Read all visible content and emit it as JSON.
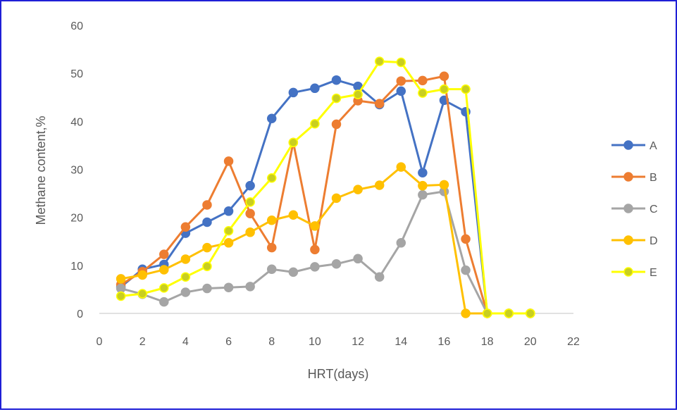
{
  "chart_data": {
    "type": "line",
    "title": "",
    "xlabel": "HRT(days)",
    "ylabel": "Methane content,%",
    "xlim": [
      0,
      22
    ],
    "ylim": [
      0,
      60
    ],
    "x_ticks": [
      0,
      2,
      4,
      6,
      8,
      10,
      12,
      14,
      16,
      18,
      20,
      22
    ],
    "y_ticks": [
      0,
      10,
      20,
      30,
      40,
      50,
      60
    ],
    "grid": false,
    "legend_position": "right",
    "series": [
      {
        "name": "A",
        "color": "#4472c4",
        "marker_fill": "#4472c4",
        "x": [
          1,
          2,
          3,
          4,
          5,
          6,
          7,
          8,
          9,
          10,
          11,
          12,
          13,
          14,
          15,
          16,
          17,
          18,
          19,
          20
        ],
        "values": [
          5.5,
          9.2,
          10.2,
          16.7,
          19.0,
          21.3,
          26.6,
          40.6,
          46.0,
          46.9,
          48.6,
          47.3,
          43.5,
          46.3,
          29.3,
          44.4,
          42.0,
          0,
          0,
          0
        ]
      },
      {
        "name": "B",
        "color": "#ed7d31",
        "marker_fill": "#ed7d31",
        "x": [
          1,
          2,
          3,
          4,
          5,
          6,
          7,
          8,
          9,
          10,
          11,
          12,
          13,
          14,
          15,
          16,
          17,
          18,
          19,
          20
        ],
        "values": [
          6.0,
          8.7,
          12.3,
          18.0,
          22.6,
          31.7,
          20.8,
          13.7,
          35.6,
          13.3,
          39.4,
          44.3,
          43.7,
          48.4,
          48.5,
          49.4,
          15.5,
          0,
          0,
          0
        ]
      },
      {
        "name": "C",
        "color": "#a5a5a5",
        "marker_fill": "#a5a5a5",
        "x": [
          1,
          2,
          3,
          4,
          5,
          6,
          7,
          8,
          9,
          10,
          11,
          12,
          13,
          14,
          15,
          16,
          17,
          18,
          19,
          20
        ],
        "values": [
          5.2,
          4.0,
          2.4,
          4.4,
          5.2,
          5.4,
          5.6,
          9.2,
          8.6,
          9.7,
          10.3,
          11.4,
          7.6,
          14.7,
          24.7,
          25.4,
          9.0,
          0,
          0,
          0
        ]
      },
      {
        "name": "D",
        "color": "#ffc000",
        "marker_fill": "#ffc000",
        "x": [
          1,
          2,
          3,
          4,
          5,
          6,
          7,
          8,
          9,
          10,
          11,
          12,
          13,
          14,
          15,
          16,
          17,
          18,
          19,
          20
        ],
        "values": [
          7.2,
          8.0,
          9.1,
          11.3,
          13.7,
          14.7,
          16.9,
          19.4,
          20.5,
          18.2,
          24.0,
          25.8,
          26.7,
          30.5,
          26.6,
          26.8,
          0,
          0,
          0,
          0
        ]
      },
      {
        "name": "E",
        "color": "#ffff00",
        "marker_fill": "#c9cf1f",
        "x": [
          1,
          2,
          3,
          4,
          5,
          6,
          7,
          8,
          9,
          10,
          11,
          12,
          13,
          14,
          15,
          16,
          17,
          18,
          19,
          20
        ],
        "values": [
          3.6,
          4.1,
          5.3,
          7.6,
          9.8,
          17.2,
          23.2,
          28.2,
          35.6,
          39.5,
          44.8,
          45.6,
          52.5,
          52.3,
          45.9,
          46.7,
          46.7,
          0,
          0,
          0
        ]
      }
    ]
  }
}
